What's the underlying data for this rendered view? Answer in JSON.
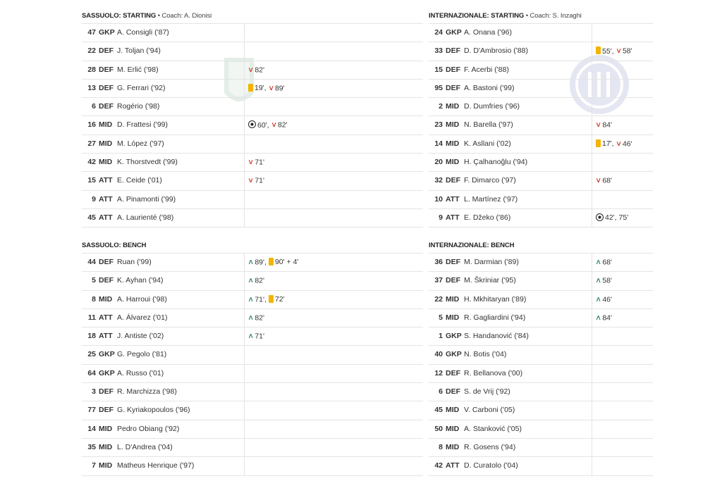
{
  "home": {
    "starting": {
      "title": "SASSUOLO: STARTING",
      "coach": "• Coach: A. Dionisi",
      "players": [
        {
          "num": "47",
          "pos": "GKP",
          "name": "A. Consigli ('87)",
          "events": []
        },
        {
          "num": "22",
          "pos": "DEF",
          "name": "J. Toljan ('94)",
          "events": []
        },
        {
          "num": "28",
          "pos": "DEF",
          "name": "M. Erlić ('98)",
          "events": [
            {
              "icon": "sub-off-icon",
              "text": "82'"
            }
          ]
        },
        {
          "num": "13",
          "pos": "DEF",
          "name": "G. Ferrari ('92)",
          "events": [
            {
              "icon": "yellow-card-icon",
              "text": "19',"
            },
            {
              "icon": "sub-off-icon",
              "text": "89'"
            }
          ]
        },
        {
          "num": "6",
          "pos": "DEF",
          "name": "Rogério ('98)",
          "events": []
        },
        {
          "num": "16",
          "pos": "MID",
          "name": "D. Frattesi ('99)",
          "events": [
            {
              "icon": "goal-icon",
              "text": "60',"
            },
            {
              "icon": "sub-off-icon",
              "text": "82'"
            }
          ]
        },
        {
          "num": "27",
          "pos": "MID",
          "name": "M. López ('97)",
          "events": []
        },
        {
          "num": "42",
          "pos": "MID",
          "name": "K. Thorstvedt ('99)",
          "events": [
            {
              "icon": "sub-off-icon",
              "text": "71'"
            }
          ]
        },
        {
          "num": "15",
          "pos": "ATT",
          "name": "E. Ceide ('01)",
          "events": [
            {
              "icon": "sub-off-icon",
              "text": "71'"
            }
          ]
        },
        {
          "num": "9",
          "pos": "ATT",
          "name": "A. Pinamonti ('99)",
          "events": []
        },
        {
          "num": "45",
          "pos": "ATT",
          "name": "A. Laurienté ('98)",
          "events": []
        }
      ]
    },
    "bench": {
      "title": "SASSUOLO: BENCH",
      "players": [
        {
          "num": "44",
          "pos": "DEF",
          "name": "Ruan ('99)",
          "events": [
            {
              "icon": "sub-on-icon",
              "text": "89',"
            },
            {
              "icon": "yellow-card-icon",
              "text": "90' + 4'"
            }
          ]
        },
        {
          "num": "5",
          "pos": "DEF",
          "name": "K. Ayhan ('94)",
          "events": [
            {
              "icon": "sub-on-icon",
              "text": "82'"
            }
          ]
        },
        {
          "num": "8",
          "pos": "MID",
          "name": "A. Harroui ('98)",
          "events": [
            {
              "icon": "sub-on-icon",
              "text": "71',"
            },
            {
              "icon": "yellow-card-icon",
              "text": "72'"
            }
          ]
        },
        {
          "num": "11",
          "pos": "ATT",
          "name": "A. Álvarez ('01)",
          "events": [
            {
              "icon": "sub-on-icon",
              "text": "82'"
            }
          ]
        },
        {
          "num": "18",
          "pos": "ATT",
          "name": "J. Antiste ('02)",
          "events": [
            {
              "icon": "sub-on-icon",
              "text": "71'"
            }
          ]
        },
        {
          "num": "25",
          "pos": "GKP",
          "name": "G. Pegolo ('81)",
          "events": []
        },
        {
          "num": "64",
          "pos": "GKP",
          "name": "A. Russo ('01)",
          "events": []
        },
        {
          "num": "3",
          "pos": "DEF",
          "name": "R. Marchizza ('98)",
          "events": []
        },
        {
          "num": "77",
          "pos": "DEF",
          "name": "G. Kyriakopoulos ('96)",
          "events": []
        },
        {
          "num": "14",
          "pos": "MID",
          "name": "Pedro Obiang ('92)",
          "events": []
        },
        {
          "num": "35",
          "pos": "MID",
          "name": "L. D'Andrea ('04)",
          "events": []
        },
        {
          "num": "7",
          "pos": "MID",
          "name": "Matheus Henrique ('97)",
          "events": []
        }
      ]
    }
  },
  "away": {
    "starting": {
      "title": "INTERNAZIONALE: STARTING",
      "coach": "• Coach: S. Inzaghi",
      "players": [
        {
          "num": "24",
          "pos": "GKP",
          "name": "A. Onana ('96)",
          "events": []
        },
        {
          "num": "33",
          "pos": "DEF",
          "name": "D. D'Ambrosio ('88)",
          "events": [
            {
              "icon": "yellow-card-icon",
              "text": "55',"
            },
            {
              "icon": "sub-off-icon",
              "text": "58'"
            }
          ]
        },
        {
          "num": "15",
          "pos": "DEF",
          "name": "F. Acerbi ('88)",
          "events": []
        },
        {
          "num": "95",
          "pos": "DEF",
          "name": "A. Bastoni ('99)",
          "events": []
        },
        {
          "num": "2",
          "pos": "MID",
          "name": "D. Dumfries ('96)",
          "events": []
        },
        {
          "num": "23",
          "pos": "MID",
          "name": "N. Barella ('97)",
          "events": [
            {
              "icon": "sub-off-icon",
              "text": "84'"
            }
          ]
        },
        {
          "num": "14",
          "pos": "MID",
          "name": "K. Asllani ('02)",
          "events": [
            {
              "icon": "yellow-card-icon",
              "text": "17',"
            },
            {
              "icon": "sub-off-icon",
              "text": "46'"
            }
          ]
        },
        {
          "num": "20",
          "pos": "MID",
          "name": "H. Çalhanoğlu ('94)",
          "events": []
        },
        {
          "num": "32",
          "pos": "DEF",
          "name": "F. Dimarco ('97)",
          "events": [
            {
              "icon": "sub-off-icon",
              "text": "68'"
            }
          ]
        },
        {
          "num": "10",
          "pos": "ATT",
          "name": "L. Martínez ('97)",
          "events": []
        },
        {
          "num": "9",
          "pos": "ATT",
          "name": "E. Džeko ('86)",
          "events": [
            {
              "icon": "goal-icon",
              "text": "42', 75'"
            }
          ]
        }
      ]
    },
    "bench": {
      "title": "INTERNAZIONALE: BENCH",
      "players": [
        {
          "num": "36",
          "pos": "DEF",
          "name": "M. Darmian ('89)",
          "events": [
            {
              "icon": "sub-on-icon",
              "text": "68'"
            }
          ]
        },
        {
          "num": "37",
          "pos": "DEF",
          "name": "M. Škriniar ('95)",
          "events": [
            {
              "icon": "sub-on-icon",
              "text": "58'"
            }
          ]
        },
        {
          "num": "22",
          "pos": "MID",
          "name": "H. Mkhitaryan ('89)",
          "events": [
            {
              "icon": "sub-on-icon",
              "text": "46'"
            }
          ]
        },
        {
          "num": "5",
          "pos": "MID",
          "name": "R. Gagliardini ('94)",
          "events": [
            {
              "icon": "sub-on-icon",
              "text": "84'"
            }
          ]
        },
        {
          "num": "1",
          "pos": "GKP",
          "name": "S. Handanović ('84)",
          "events": []
        },
        {
          "num": "40",
          "pos": "GKP",
          "name": "N. Botis ('04)",
          "events": []
        },
        {
          "num": "12",
          "pos": "DEF",
          "name": "R. Bellanova ('00)",
          "events": []
        },
        {
          "num": "6",
          "pos": "DEF",
          "name": "S. de Vrij ('92)",
          "events": []
        },
        {
          "num": "45",
          "pos": "MID",
          "name": "V. Carboni ('05)",
          "events": []
        },
        {
          "num": "50",
          "pos": "MID",
          "name": "A. Stanković ('05)",
          "events": []
        },
        {
          "num": "8",
          "pos": "MID",
          "name": "R. Gosens ('94)",
          "events": []
        },
        {
          "num": "42",
          "pos": "ATT",
          "name": "D. Curatolo ('04)",
          "events": []
        }
      ]
    }
  },
  "colors": {
    "sub_off": "#d0311f",
    "sub_on": "#1a7d5a",
    "yellow_card": "#f4b400",
    "crest_home": "#1f7a3a",
    "crest_away": "#2c3e90"
  }
}
